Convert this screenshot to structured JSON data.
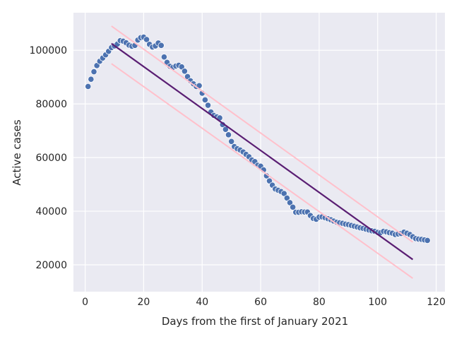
{
  "chart_data": {
    "type": "scatter",
    "title": "",
    "xlabel": "Days from the first of January 2021",
    "ylabel": "Active cases",
    "xlim": [
      -4,
      123
    ],
    "ylim": [
      10000,
      114000
    ],
    "xticks": [
      0,
      20,
      40,
      60,
      80,
      100,
      120
    ],
    "yticks": [
      20000,
      40000,
      60000,
      80000,
      100000
    ],
    "grid": true,
    "legend": "none",
    "colors": {
      "background": "#eaeaf2",
      "grid": "#ffffff",
      "points": "#4c72b0",
      "points_edge": "#ffffff",
      "fit_line": "#5a1e73",
      "band_lines": "#ffc0cb"
    },
    "series": [
      {
        "type": "scatter",
        "x": [
          1,
          2,
          3,
          4,
          5,
          6,
          7,
          8,
          9,
          10,
          11,
          12,
          13,
          14,
          15,
          16,
          17,
          18,
          19,
          20,
          21,
          22,
          23,
          24,
          25,
          26,
          27,
          28,
          29,
          30,
          31,
          32,
          33,
          34,
          35,
          36,
          37,
          38,
          39,
          40,
          41,
          42,
          43,
          44,
          45,
          46,
          47,
          48,
          49,
          50,
          51,
          52,
          53,
          54,
          55,
          56,
          57,
          58,
          59,
          60,
          61,
          62,
          63,
          64,
          65,
          66,
          67,
          68,
          69,
          70,
          71,
          72,
          73,
          74,
          75,
          76,
          77,
          78,
          79,
          80,
          81,
          82,
          83,
          84,
          85,
          86,
          87,
          88,
          89,
          90,
          91,
          92,
          93,
          94,
          95,
          96,
          97,
          98,
          99,
          100,
          101,
          102,
          103,
          104,
          105,
          106,
          107,
          108,
          109,
          110,
          111,
          112,
          113,
          114,
          115,
          116,
          117
        ],
        "y": [
          86500,
          89200,
          92000,
          94300,
          95900,
          97100,
          98300,
          99600,
          101000,
          101600,
          102300,
          103600,
          103400,
          102800,
          101900,
          101500,
          101800,
          103800,
          104700,
          104900,
          104000,
          102200,
          101200,
          101600,
          102700,
          101800,
          97500,
          95500,
          94000,
          93600,
          94100,
          94400,
          93800,
          92200,
          90200,
          88600,
          87500,
          86500,
          86800,
          84000,
          81500,
          79500,
          77000,
          75700,
          75200,
          74800,
          72300,
          70500,
          68500,
          66000,
          64100,
          63300,
          62800,
          62100,
          61200,
          60300,
          59100,
          58500,
          57100,
          56800,
          55400,
          53200,
          51300,
          49700,
          48300,
          47800,
          47300,
          46600,
          44900,
          43200,
          41500,
          39600,
          39600,
          39800,
          39700,
          39700,
          38400,
          37300,
          37000,
          37800,
          37900,
          37600,
          37200,
          36800,
          36300,
          35900,
          35700,
          35500,
          35200,
          35000,
          34700,
          34400,
          34100,
          33800,
          33600,
          33300,
          33000,
          32700,
          32500,
          32100,
          32000,
          32500,
          32300,
          32000,
          31800,
          31300,
          31500,
          31700,
          32200,
          31800,
          31300,
          30500,
          29800,
          29600,
          29500,
          29300,
          29100
        ]
      },
      {
        "type": "line",
        "x": [
          9,
          112
        ],
        "y": [
          102500,
          22000
        ]
      },
      {
        "type": "line",
        "x": [
          9,
          112
        ],
        "y": [
          109000,
          28500
        ]
      },
      {
        "type": "line",
        "x": [
          9,
          112
        ],
        "y": [
          95000,
          15000
        ]
      }
    ]
  }
}
